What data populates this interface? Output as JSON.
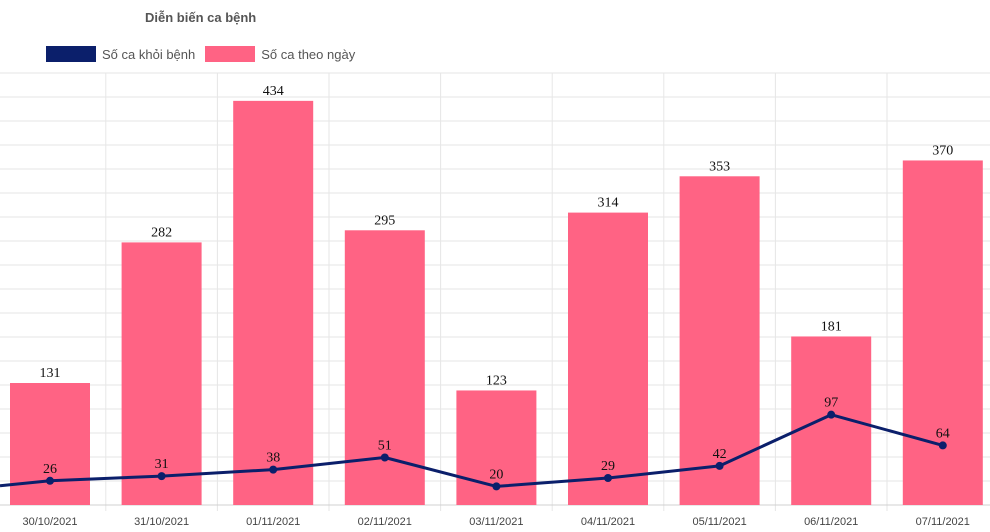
{
  "chart_data": {
    "type": "bar",
    "title": "Diễn biến ca bệnh",
    "categories": [
      "30/10/2021",
      "31/10/2021",
      "01/11/2021",
      "02/11/2021",
      "03/11/2021",
      "04/11/2021",
      "05/11/2021",
      "06/11/2021",
      "07/11/2021"
    ],
    "series": [
      {
        "name": "Số ca khỏi bệnh",
        "type": "line",
        "color": "#0b1f6b",
        "values": [
          26,
          31,
          38,
          51,
          20,
          29,
          42,
          97,
          64
        ]
      },
      {
        "name": "Số ca theo ngày",
        "type": "bar",
        "color": "#ff6384",
        "values": [
          131,
          282,
          434,
          295,
          123,
          314,
          353,
          181,
          370
        ]
      }
    ],
    "ylim": [
      0,
      450
    ],
    "grid": true,
    "legend": "top-left"
  }
}
